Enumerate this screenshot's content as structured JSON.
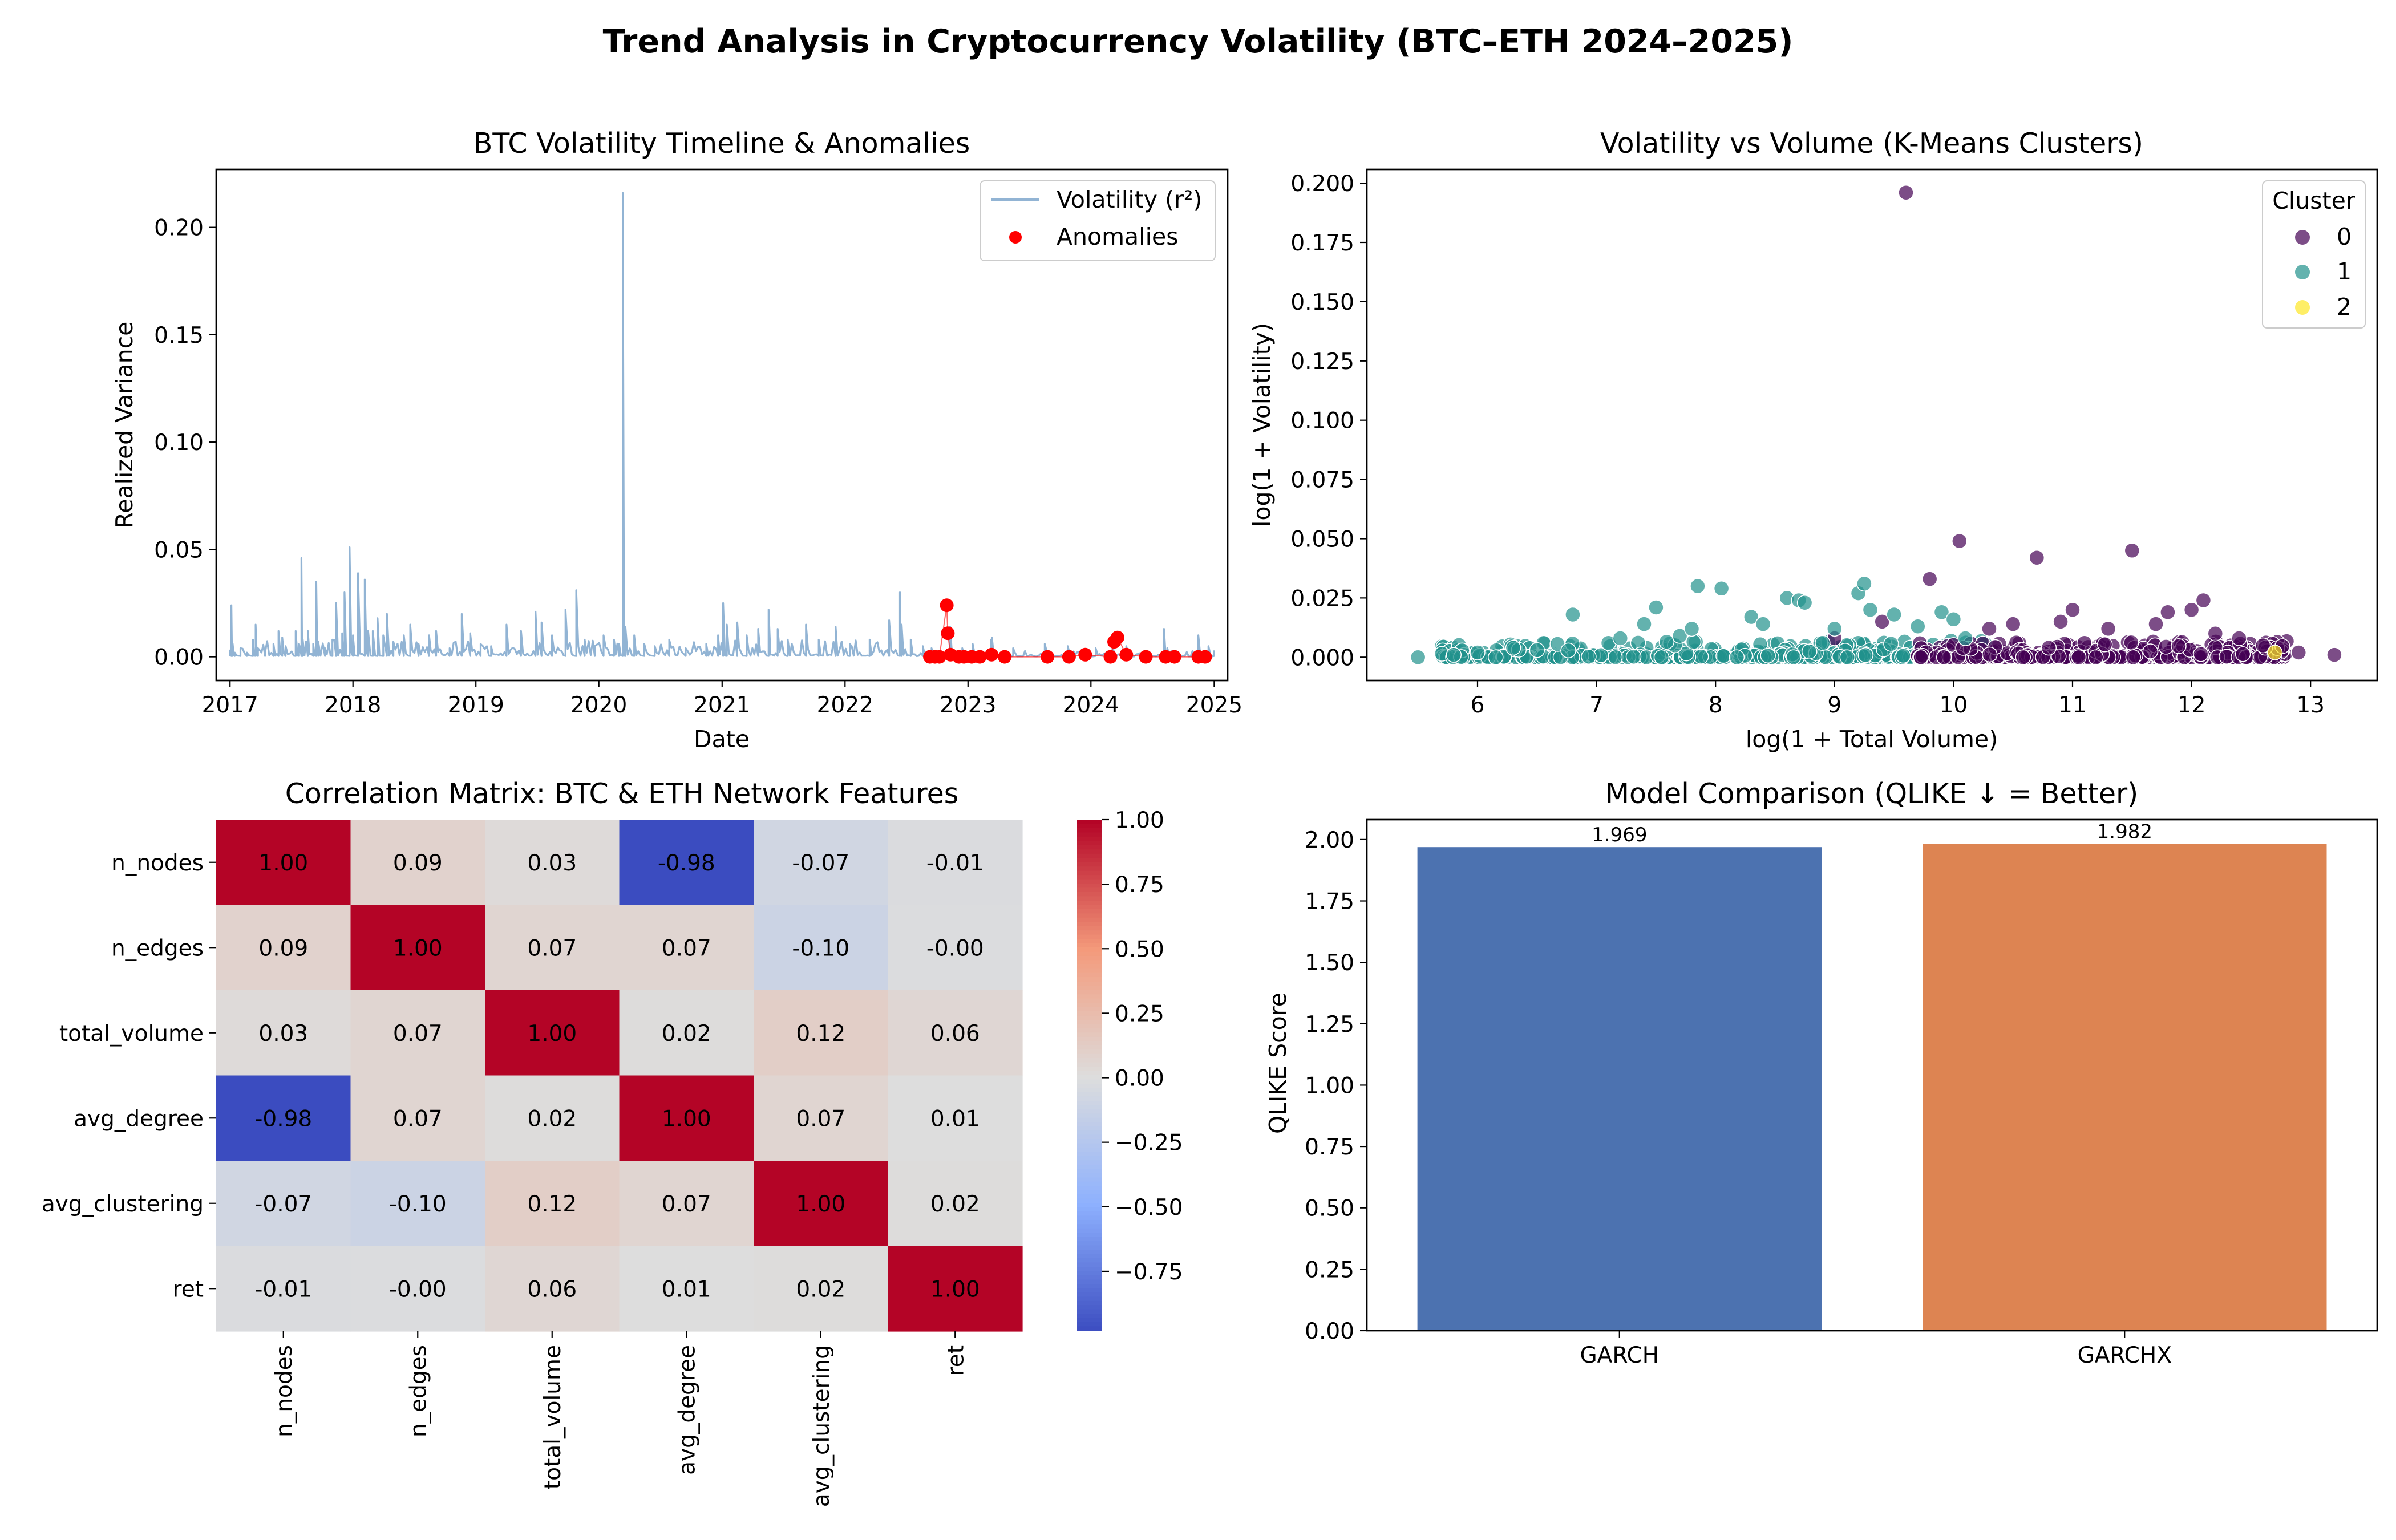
{
  "figure": {
    "title": "Trend Analysis in Cryptocurrency Volatility (BTC–ETH 2024–2025)"
  },
  "chart_data": [
    {
      "type": "line",
      "title": "BTC Volatility Timeline & Anomalies",
      "xlabel": "Date",
      "ylabel": "Realized Variance",
      "xlim": [
        "2016-11-21",
        "2025-02-10"
      ],
      "ylim": [
        -0.011,
        0.227
      ],
      "xticks": [
        "2017",
        "2018",
        "2019",
        "2020",
        "2021",
        "2022",
        "2023",
        "2024",
        "2025"
      ],
      "yticks": [
        "0.00",
        "0.05",
        "0.10",
        "0.15",
        "0.20"
      ],
      "grid": false,
      "legend": {
        "position": "top-right",
        "entries": [
          "Volatility (r²)",
          "Anomalies"
        ]
      },
      "series": [
        {
          "name": "Volatility (r²)",
          "color": "#92b4d4",
          "points": [
            [
              "2017-01-01",
              0.003
            ],
            [
              "2017-01-05",
              0.024
            ],
            [
              "2017-01-09",
              0.006
            ],
            [
              "2017-01-15",
              0.002
            ],
            [
              "2017-02-01",
              0.004
            ],
            [
              "2017-02-20",
              0.002
            ],
            [
              "2017-03-10",
              0.008
            ],
            [
              "2017-03-18",
              0.015
            ],
            [
              "2017-03-25",
              0.004
            ],
            [
              "2017-04-15",
              0.002
            ],
            [
              "2017-05-10",
              0.006
            ],
            [
              "2017-05-25",
              0.012
            ],
            [
              "2017-06-05",
              0.009
            ],
            [
              "2017-06-15",
              0.005
            ],
            [
              "2017-07-15",
              0.012
            ],
            [
              "2017-07-25",
              0.006
            ],
            [
              "2017-08-01",
              0.046
            ],
            [
              "2017-08-05",
              0.008
            ],
            [
              "2017-08-20",
              0.012
            ],
            [
              "2017-09-05",
              0.006
            ],
            [
              "2017-09-14",
              0.035
            ],
            [
              "2017-09-20",
              0.007
            ],
            [
              "2017-10-10",
              0.004
            ],
            [
              "2017-11-01",
              0.008
            ],
            [
              "2017-11-12",
              0.025
            ],
            [
              "2017-11-30",
              0.011
            ],
            [
              "2017-12-07",
              0.03
            ],
            [
              "2017-12-22",
              0.051
            ],
            [
              "2018-01-01",
              0.01
            ],
            [
              "2018-01-16",
              0.039
            ],
            [
              "2018-02-05",
              0.036
            ],
            [
              "2018-02-15",
              0.012
            ],
            [
              "2018-03-01",
              0.012
            ],
            [
              "2018-03-15",
              0.018
            ],
            [
              "2018-04-01",
              0.01
            ],
            [
              "2018-04-12",
              0.02
            ],
            [
              "2018-05-01",
              0.007
            ],
            [
              "2018-06-01",
              0.01
            ],
            [
              "2018-06-20",
              0.015
            ],
            [
              "2018-07-15",
              0.006
            ],
            [
              "2018-08-15",
              0.01
            ],
            [
              "2018-09-05",
              0.012
            ],
            [
              "2018-10-15",
              0.004
            ],
            [
              "2018-11-20",
              0.02
            ],
            [
              "2018-12-15",
              0.011
            ],
            [
              "2019-01-15",
              0.006
            ],
            [
              "2019-02-15",
              0.005
            ],
            [
              "2019-04-02",
              0.015
            ],
            [
              "2019-05-15",
              0.012
            ],
            [
              "2019-06-27",
              0.021
            ],
            [
              "2019-07-15",
              0.016
            ],
            [
              "2019-08-15",
              0.01
            ],
            [
              "2019-09-24",
              0.022
            ],
            [
              "2019-10-26",
              0.031
            ],
            [
              "2019-11-20",
              0.008
            ],
            [
              "2019-12-20",
              0.005
            ],
            [
              "2020-01-15",
              0.01
            ],
            [
              "2020-02-15",
              0.008
            ],
            [
              "2020-03-01",
              0.006
            ],
            [
              "2020-03-12",
              0.216
            ],
            [
              "2020-03-20",
              0.014
            ],
            [
              "2020-04-15",
              0.01
            ],
            [
              "2020-05-15",
              0.006
            ],
            [
              "2020-06-15",
              0.005
            ],
            [
              "2020-07-28",
              0.008
            ],
            [
              "2020-09-15",
              0.004
            ],
            [
              "2020-11-15",
              0.006
            ],
            [
              "2020-12-20",
              0.01
            ],
            [
              "2021-01-04",
              0.025
            ],
            [
              "2021-01-15",
              0.015
            ],
            [
              "2021-02-15",
              0.016
            ],
            [
              "2021-03-15",
              0.01
            ],
            [
              "2021-04-18",
              0.013
            ],
            [
              "2021-05-19",
              0.022
            ],
            [
              "2021-06-15",
              0.013
            ],
            [
              "2021-07-15",
              0.008
            ],
            [
              "2021-09-07",
              0.015
            ],
            [
              "2021-10-15",
              0.008
            ],
            [
              "2021-12-04",
              0.014
            ],
            [
              "2022-01-15",
              0.006
            ],
            [
              "2022-03-15",
              0.008
            ],
            [
              "2022-05-12",
              0.017
            ],
            [
              "2022-06-13",
              0.03
            ],
            [
              "2022-06-18",
              0.015
            ],
            [
              "2022-07-15",
              0.008
            ],
            [
              "2022-08-20",
              0.005
            ],
            [
              "2022-09-15",
              0.004
            ],
            [
              "2022-11-09",
              0.014
            ],
            [
              "2022-12-15",
              0.004
            ],
            [
              "2023-01-15",
              0.006
            ],
            [
              "2023-03-10",
              0.008
            ],
            [
              "2023-03-13",
              0.009
            ],
            [
              "2023-05-15",
              0.004
            ],
            [
              "2023-08-17",
              0.006
            ],
            [
              "2023-10-24",
              0.005
            ],
            [
              "2024-01-15",
              0.004
            ],
            [
              "2024-03-05",
              0.006
            ],
            [
              "2024-04-15",
              0.005
            ],
            [
              "2024-08-05",
              0.013
            ],
            [
              "2024-08-15",
              0.004
            ],
            [
              "2024-11-15",
              0.01
            ],
            [
              "2024-12-15",
              0.005
            ],
            [
              "2025-01-01",
              0.003
            ]
          ]
        },
        {
          "name": "Anomalies",
          "color": "#ff0000",
          "points": [
            [
              "2022-09-10",
              0.0
            ],
            [
              "2022-09-25",
              0.0
            ],
            [
              "2022-10-08",
              0.0
            ],
            [
              "2022-10-30",
              0.024
            ],
            [
              "2022-11-02",
              0.011
            ],
            [
              "2022-11-10",
              0.001
            ],
            [
              "2022-12-05",
              0.0
            ],
            [
              "2022-12-20",
              0.0
            ],
            [
              "2023-01-12",
              0.0
            ],
            [
              "2023-02-05",
              0.0
            ],
            [
              "2023-03-12",
              0.001
            ],
            [
              "2023-04-20",
              0.0
            ],
            [
              "2023-08-25",
              0.0
            ],
            [
              "2023-10-28",
              0.0
            ],
            [
              "2023-12-15",
              0.001
            ],
            [
              "2024-02-28",
              0.0
            ],
            [
              "2024-03-10",
              0.007
            ],
            [
              "2024-03-20",
              0.009
            ],
            [
              "2024-04-15",
              0.001
            ],
            [
              "2024-06-12",
              0.0
            ],
            [
              "2024-08-10",
              0.0
            ],
            [
              "2024-09-05",
              0.0
            ],
            [
              "2024-11-15",
              0.0
            ],
            [
              "2024-12-05",
              0.0
            ]
          ]
        }
      ]
    },
    {
      "type": "scatter",
      "title": "Volatility vs Volume (K-Means Clusters)",
      "xlabel": "log(1 + Total Volume)",
      "ylabel": "log(1 + Volatility)",
      "xlim": [
        5.07,
        13.56
      ],
      "ylim": [
        -0.0098,
        0.2058
      ],
      "xticks": [
        "6",
        "7",
        "8",
        "9",
        "10",
        "11",
        "12",
        "13"
      ],
      "yticks": [
        "0.000",
        "0.025",
        "0.050",
        "0.075",
        "0.100",
        "0.125",
        "0.150",
        "0.175",
        "0.200"
      ],
      "grid": false,
      "legend": {
        "title": "Cluster",
        "position": "top-right",
        "entries": [
          "0",
          "1",
          "2"
        ]
      },
      "series": [
        {
          "name": "0",
          "color": "#440154",
          "points": [
            [
              9.6,
              0.196
            ],
            [
              10.05,
              0.049
            ],
            [
              10.7,
              0.042
            ],
            [
              11.5,
              0.045
            ],
            [
              9.8,
              0.033
            ],
            [
              11.0,
              0.02
            ],
            [
              11.8,
              0.019
            ],
            [
              12.1,
              0.024
            ],
            [
              12.0,
              0.02
            ],
            [
              9.4,
              0.015
            ],
            [
              10.3,
              0.012
            ],
            [
              10.5,
              0.014
            ],
            [
              10.9,
              0.015
            ],
            [
              11.3,
              0.012
            ],
            [
              11.7,
              0.014
            ],
            [
              12.4,
              0.008
            ],
            [
              13.2,
              0.001
            ],
            [
              12.9,
              0.002
            ],
            [
              12.6,
              0.005
            ],
            [
              12.2,
              0.01
            ],
            [
              11.1,
              0.006
            ],
            [
              10.8,
              0.004
            ],
            [
              9.0,
              0.008
            ]
          ]
        },
        {
          "name": "1",
          "color": "#21918c",
          "points": [
            [
              5.5,
              0.0
            ],
            [
              5.8,
              0.001
            ],
            [
              6.3,
              0.004
            ],
            [
              6.8,
              0.018
            ],
            [
              7.1,
              0.006
            ],
            [
              7.4,
              0.014
            ],
            [
              7.5,
              0.021
            ],
            [
              7.7,
              0.009
            ],
            [
              7.8,
              0.012
            ],
            [
              7.85,
              0.03
            ],
            [
              8.05,
              0.029
            ],
            [
              8.3,
              0.017
            ],
            [
              8.4,
              0.014
            ],
            [
              8.6,
              0.025
            ],
            [
              8.7,
              0.024
            ],
            [
              8.75,
              0.023
            ],
            [
              9.0,
              0.012
            ],
            [
              9.2,
              0.027
            ],
            [
              9.25,
              0.031
            ],
            [
              9.3,
              0.02
            ],
            [
              9.5,
              0.018
            ],
            [
              9.7,
              0.013
            ],
            [
              9.9,
              0.019
            ],
            [
              10.0,
              0.016
            ],
            [
              10.1,
              0.008
            ],
            [
              6.0,
              0.002
            ],
            [
              6.5,
              0.003
            ],
            [
              7.2,
              0.008
            ],
            [
              8.9,
              0.006
            ]
          ]
        },
        {
          "name": "2",
          "color": "#fde725",
          "points": [
            [
              12.7,
              0.002
            ]
          ]
        }
      ]
    },
    {
      "type": "heatmap",
      "title": "Correlation Matrix: BTC & ETH Network Features",
      "labels": [
        "n_nodes",
        "n_edges",
        "total_volume",
        "avg_degree",
        "avg_clustering",
        "ret"
      ],
      "matrix": [
        [
          1.0,
          0.09,
          0.03,
          -0.98,
          -0.07,
          -0.01
        ],
        [
          0.09,
          1.0,
          0.07,
          0.07,
          -0.1,
          -0.0
        ],
        [
          0.03,
          0.07,
          1.0,
          0.02,
          0.12,
          0.06
        ],
        [
          -0.98,
          0.07,
          0.02,
          1.0,
          0.07,
          0.01
        ],
        [
          -0.07,
          -0.1,
          0.12,
          0.07,
          1.0,
          0.02
        ],
        [
          -0.01,
          -0.0,
          0.06,
          0.01,
          0.02,
          1.0
        ]
      ],
      "cell_labels": [
        [
          "1.00",
          "0.09",
          "0.03",
          "-0.98",
          "-0.07",
          "-0.01"
        ],
        [
          "0.09",
          "1.00",
          "0.07",
          "0.07",
          "-0.10",
          "-0.00"
        ],
        [
          "0.03",
          "0.07",
          "1.00",
          "0.02",
          "0.12",
          "0.06"
        ],
        [
          "-0.98",
          "0.07",
          "0.02",
          "1.00",
          "0.07",
          "0.01"
        ],
        [
          "-0.07",
          "-0.10",
          "0.12",
          "0.07",
          "1.00",
          "0.02"
        ],
        [
          "-0.01",
          "-0.00",
          "0.06",
          "0.01",
          "0.02",
          "1.00"
        ]
      ],
      "colormap": "coolwarm",
      "vmin": -0.98,
      "vmax": 1.0,
      "colorbar_ticks": [
        "1.00",
        "0.75",
        "0.50",
        "0.25",
        "0.00",
        "−0.25",
        "−0.50",
        "−0.75"
      ],
      "colorbar_values": [
        1.0,
        0.75,
        0.5,
        0.25,
        0.0,
        -0.25,
        -0.5,
        -0.75
      ]
    },
    {
      "type": "bar",
      "title": "Model Comparison (QLIKE ↓ = Better)",
      "xlabel": "",
      "ylabel": "QLIKE Score",
      "categories": [
        "GARCH",
        "GARCHX"
      ],
      "values": [
        1.969,
        1.982
      ],
      "value_labels": [
        "1.969",
        "1.982"
      ],
      "colors": [
        "#4c72b0",
        "#dd8452"
      ],
      "ylim": [
        0,
        2.081
      ],
      "yticks": [
        "0.00",
        "0.25",
        "0.50",
        "0.75",
        "1.00",
        "1.25",
        "1.50",
        "1.75",
        "2.00"
      ],
      "grid": false
    }
  ]
}
